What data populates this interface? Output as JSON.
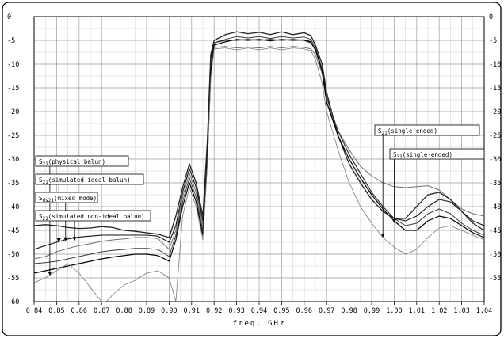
{
  "chart_data": {
    "type": "line",
    "xlabel": "freq, GHz",
    "ylabel": "",
    "xlim": [
      0.84,
      1.04
    ],
    "ylim": [
      -60,
      0
    ],
    "x_ticks": [
      "0.84",
      "0.85",
      "0.86",
      "0.87",
      "0.88",
      "0.89",
      "0.90",
      "0.91",
      "0.92",
      "0.93",
      "0.94",
      "0.95",
      "0.96",
      "0.97",
      "0.98",
      "0.99",
      "1.00",
      "1.01",
      "1.02",
      "1.03",
      "1.04"
    ],
    "y_ticks_left": [
      "0",
      "-5",
      "-10",
      "-15",
      "-20",
      "-25",
      "-30",
      "-35",
      "-40",
      "-45",
      "-50",
      "-55",
      "-60"
    ],
    "y_ticks_right": [
      "0",
      "-5",
      "-10",
      "-15",
      "-20",
      "-25",
      "-30",
      "-35",
      "-40",
      "-45",
      "-50",
      "-55"
    ],
    "grid": true,
    "annotations": [
      {
        "main": "S",
        "sub": "21",
        "rest": "(physical balun)",
        "target": [
          0.847,
          -54.5
        ]
      },
      {
        "main": "S",
        "sub": "21",
        "rest": "(simulated ideal balun)",
        "target": [
          0.851,
          -47.5
        ]
      },
      {
        "main": "S",
        "sub": "ds21",
        "rest": "(mixed mode)",
        "target": [
          0.854,
          -47.3
        ]
      },
      {
        "main": "S",
        "sub": "21",
        "rest": "(simulated non-ideal balun)",
        "target": [
          0.858,
          -47.2
        ]
      },
      {
        "main": "S",
        "sub": "21",
        "rest": "(single-ended)",
        "target": [
          0.995,
          -46.5
        ]
      },
      {
        "main": "S",
        "sub": "31",
        "rest": "(single-ended)",
        "target": [
          1.0,
          -43.5
        ]
      }
    ],
    "series": [
      {
        "x": [
          0.84,
          0.845,
          0.85,
          0.855,
          0.86,
          0.865,
          0.87,
          0.875,
          0.88,
          0.885,
          0.89,
          0.895,
          0.9,
          0.903,
          0.906,
          0.909,
          0.912,
          0.915,
          0.917,
          0.9185,
          0.92,
          0.925,
          0.93,
          0.935,
          0.94,
          0.945,
          0.95,
          0.955,
          0.96,
          0.963,
          0.965,
          0.968,
          0.97,
          0.975,
          0.98,
          0.985,
          0.99,
          0.995,
          1.0,
          1.005,
          1.01,
          1.015,
          1.02,
          1.025,
          1.03,
          1.035,
          1.04
        ],
        "y": [
          -51,
          -50.5,
          -49.5,
          -48.8,
          -48.2,
          -47.8,
          -47.3,
          -47,
          -46.8,
          -46.5,
          -46.5,
          -46.7,
          -49,
          -45,
          -38,
          -33,
          -37,
          -44,
          -28,
          -10,
          -6.5,
          -6.3,
          -6.6,
          -6.4,
          -6.6,
          -6.3,
          -6.6,
          -6.3,
          -6.5,
          -6.8,
          -8,
          -12,
          -18,
          -24,
          -28,
          -31.5,
          -33.5,
          -35,
          -35.8,
          -36,
          -35.8,
          -35.6,
          -36.5,
          -38.5,
          -40.5,
          -41.5,
          -42
        ]
      },
      {
        "x": [
          0.84,
          0.845,
          0.85,
          0.855,
          0.86,
          0.865,
          0.87,
          0.875,
          0.88,
          0.885,
          0.89,
          0.895,
          0.9,
          0.903,
          0.906,
          0.909,
          0.912,
          0.915,
          0.917,
          0.9185,
          0.92,
          0.925,
          0.93,
          0.935,
          0.94,
          0.945,
          0.95,
          0.955,
          0.96,
          0.963,
          0.965,
          0.968,
          0.97,
          0.975,
          0.98,
          0.985,
          0.99,
          0.995,
          1.0,
          1.005,
          1.01,
          1.015,
          1.02,
          1.025,
          1.03,
          1.035,
          1.04
        ],
        "y": [
          -49,
          -48.2,
          -47.5,
          -46.8,
          -46.4,
          -46.2,
          -46,
          -46,
          -46,
          -46,
          -46,
          -46.2,
          -47.5,
          -44,
          -37,
          -32,
          -36,
          -43,
          -27,
          -9,
          -5.5,
          -5,
          -5,
          -4.8,
          -5,
          -4.8,
          -5,
          -4.8,
          -5,
          -5.5,
          -7,
          -11,
          -17,
          -24,
          -29,
          -33,
          -37,
          -40,
          -42.5,
          -43,
          -42,
          -40,
          -38.5,
          -39,
          -41,
          -43,
          -44
        ]
      },
      {
        "x": [
          0.84,
          0.845,
          0.85,
          0.855,
          0.86,
          0.865,
          0.87,
          0.875,
          0.88,
          0.885,
          0.89,
          0.895,
          0.9,
          0.903,
          0.906,
          0.909,
          0.912,
          0.915,
          0.917,
          0.9185,
          0.92,
          0.925,
          0.93,
          0.935,
          0.94,
          0.945,
          0.95,
          0.955,
          0.96,
          0.963,
          0.965,
          0.968,
          0.97,
          0.975,
          0.98,
          0.985,
          0.99,
          0.995,
          1.0,
          1.005,
          1.01,
          1.015,
          1.02,
          1.025,
          1.03,
          1.035,
          1.04
        ],
        "y": [
          -44,
          -43.8,
          -44,
          -44.4,
          -44.6,
          -44.5,
          -44.2,
          -44.4,
          -45,
          -45.2,
          -45.5,
          -45.8,
          -46.5,
          -42,
          -36,
          -31,
          -35,
          -42,
          -26,
          -8,
          -5,
          -3.8,
          -3.2,
          -3.6,
          -3.3,
          -3.8,
          -3.2,
          -3.8,
          -3.4,
          -4,
          -6,
          -10,
          -16,
          -25,
          -31,
          -35,
          -38.5,
          -41,
          -42.5,
          -42.5,
          -40,
          -37.5,
          -37,
          -38.5,
          -41,
          -43.5,
          -45
        ]
      },
      {
        "x": [
          0.84,
          0.845,
          0.85,
          0.855,
          0.86,
          0.865,
          0.87,
          0.875,
          0.88,
          0.885,
          0.89,
          0.895,
          0.9,
          0.903,
          0.906,
          0.909,
          0.912,
          0.915,
          0.917,
          0.9185,
          0.92,
          0.925,
          0.93,
          0.935,
          0.94,
          0.945,
          0.95,
          0.955,
          0.96,
          0.963,
          0.965,
          0.968,
          0.97,
          0.975,
          0.98,
          0.985,
          0.99,
          0.995,
          1.0,
          1.005,
          1.01,
          1.015,
          1.02,
          1.025,
          1.03,
          1.035,
          1.04
        ],
        "y": [
          -52,
          -51.8,
          -51.5,
          -51,
          -50.5,
          -50,
          -49.5,
          -49.2,
          -49,
          -48.8,
          -48.8,
          -49,
          -50.5,
          -46,
          -39,
          -34,
          -38,
          -45,
          -29,
          -11,
          -5.5,
          -4.8,
          -4.2,
          -4.5,
          -4.2,
          -4.6,
          -4.2,
          -4.5,
          -4.3,
          -4.8,
          -6.5,
          -11,
          -17,
          -24,
          -29,
          -33,
          -37,
          -40,
          -42.5,
          -44,
          -43.5,
          -41.5,
          -40.5,
          -41.5,
          -43.5,
          -45,
          -46
        ]
      },
      {
        "x": [
          0.84,
          0.845,
          0.85,
          0.855,
          0.86,
          0.865,
          0.87,
          0.875,
          0.88,
          0.885,
          0.89,
          0.895,
          0.9,
          0.903,
          0.906,
          0.909,
          0.912,
          0.915,
          0.917,
          0.9185,
          0.92,
          0.925,
          0.93,
          0.935,
          0.94,
          0.945,
          0.95,
          0.955,
          0.96,
          0.963,
          0.965,
          0.968,
          0.97,
          0.975,
          0.98,
          0.985,
          0.99,
          0.995,
          1.0,
          1.005,
          1.01,
          1.015,
          1.02,
          1.025,
          1.03,
          1.035,
          1.04
        ],
        "y": [
          -54,
          -53.5,
          -53,
          -52.5,
          -52,
          -51.5,
          -51,
          -50.6,
          -50.3,
          -50,
          -50,
          -50.3,
          -51.5,
          -47,
          -40,
          -35,
          -39,
          -46,
          -30,
          -12,
          -6,
          -5.3,
          -4.8,
          -5,
          -4.8,
          -5.1,
          -4.8,
          -5,
          -4.9,
          -5.3,
          -7,
          -11.5,
          -18,
          -25,
          -30,
          -34,
          -37.5,
          -40.5,
          -43,
          -45,
          -45,
          -43,
          -42,
          -42.5,
          -44,
          -45.5,
          -46.5
        ]
      },
      {
        "x": [
          0.84,
          0.845,
          0.85,
          0.855,
          0.86,
          0.865,
          0.87,
          0.872,
          0.875,
          0.88,
          0.885,
          0.89,
          0.895,
          0.9,
          0.903,
          0.906,
          0.909,
          0.912,
          0.915,
          0.917,
          0.9185,
          0.92,
          0.925,
          0.93,
          0.935,
          0.94,
          0.945,
          0.95,
          0.955,
          0.96,
          0.963,
          0.965,
          0.968,
          0.97,
          0.975,
          0.98,
          0.985,
          0.99,
          0.995,
          1.0,
          1.005,
          1.01,
          1.015,
          1.02,
          1.025,
          1.03,
          1.035,
          1.04
        ],
        "y": [
          -56,
          -55,
          -53.5,
          -52,
          -54,
          -57,
          -60,
          -60,
          -58.5,
          -56.5,
          -55.5,
          -54,
          -53.5,
          -55,
          -60,
          -42,
          -36,
          -40,
          -47,
          -31,
          -13,
          -6.8,
          -6.6,
          -7,
          -6.6,
          -7,
          -6.6,
          -7,
          -6.6,
          -6.8,
          -7.2,
          -9,
          -14,
          -20,
          -28,
          -35,
          -40,
          -43.5,
          -46.5,
          -48.5,
          -50,
          -49,
          -46.5,
          -44.5,
          -44,
          -45,
          -46,
          -47
        ]
      }
    ]
  }
}
